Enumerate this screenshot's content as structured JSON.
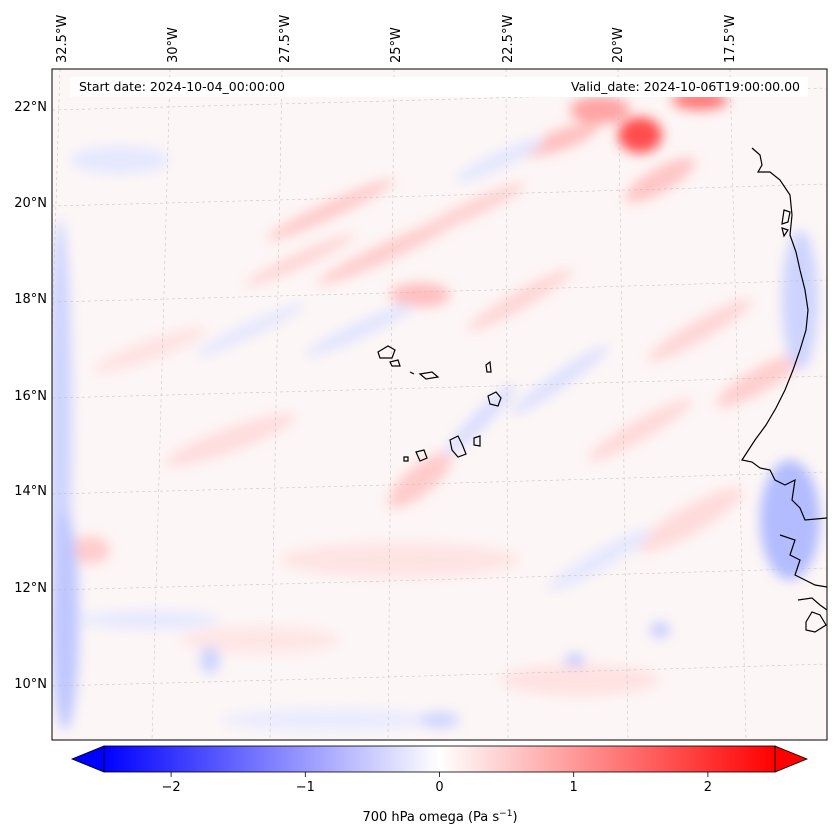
{
  "map": {
    "start_label": "Start date: 2024-10-04_00:00:00",
    "valid_label": "Valid_date: 2024-10-06T19:00:00.00",
    "lon_labels": [
      "32.5°W",
      "30°W",
      "27.5°W",
      "25°W",
      "22.5°W",
      "20°W",
      "17.5°W"
    ],
    "lat_labels": [
      "22°N",
      "20°N",
      "18°N",
      "16°N",
      "14°N",
      "12°N",
      "10°N"
    ],
    "colorbar": {
      "ticks": [
        "−2",
        "−1",
        "0",
        "1",
        "2"
      ],
      "label_prefix": "700 hPa omega (Pa s",
      "label_exp": "−1",
      "label_suffix": ")",
      "min": -2.5,
      "max": 2.5,
      "tick_values": [
        -2,
        -1,
        0,
        1,
        2
      ],
      "colormap": "bwr",
      "extend": "both"
    },
    "colors": {
      "positive": "#ff0000",
      "negative": "#0000ff",
      "neutral": "#ffffff",
      "coast": "#000000"
    }
  }
}
